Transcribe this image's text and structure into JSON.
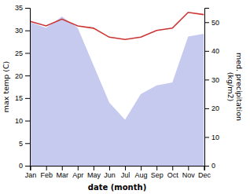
{
  "chart_data": {
    "type": "line",
    "categories": [
      "Jan",
      "Feb",
      "Mar",
      "Apr",
      "May",
      "Jun",
      "Jul",
      "Aug",
      "Sep",
      "Oct",
      "Nov",
      "Dec"
    ],
    "xlabel": "date (month)",
    "ylabel": "max temp (C)",
    "y2label": "med. precipitation\n(kg/m2)",
    "ylim": [
      0,
      35
    ],
    "yticks": [
      0,
      5,
      10,
      15,
      20,
      25,
      30,
      35
    ],
    "y2lim": [
      0,
      55
    ],
    "y2ticks": [
      0,
      10,
      20,
      30,
      40,
      50
    ],
    "grid": false,
    "series": [
      {
        "type": "area",
        "axis": "y2",
        "color": "#c5caee",
        "values": [
          50,
          48,
          52,
          48,
          35,
          22,
          16,
          25,
          28,
          29,
          45,
          46
        ]
      },
      {
        "type": "line",
        "color": "#cc3333",
        "values": [
          32.0,
          31.0,
          32.5,
          31.0,
          30.5,
          28.5,
          28.0,
          28.5,
          30.0,
          30.5,
          34.0,
          33.5
        ]
      }
    ]
  }
}
